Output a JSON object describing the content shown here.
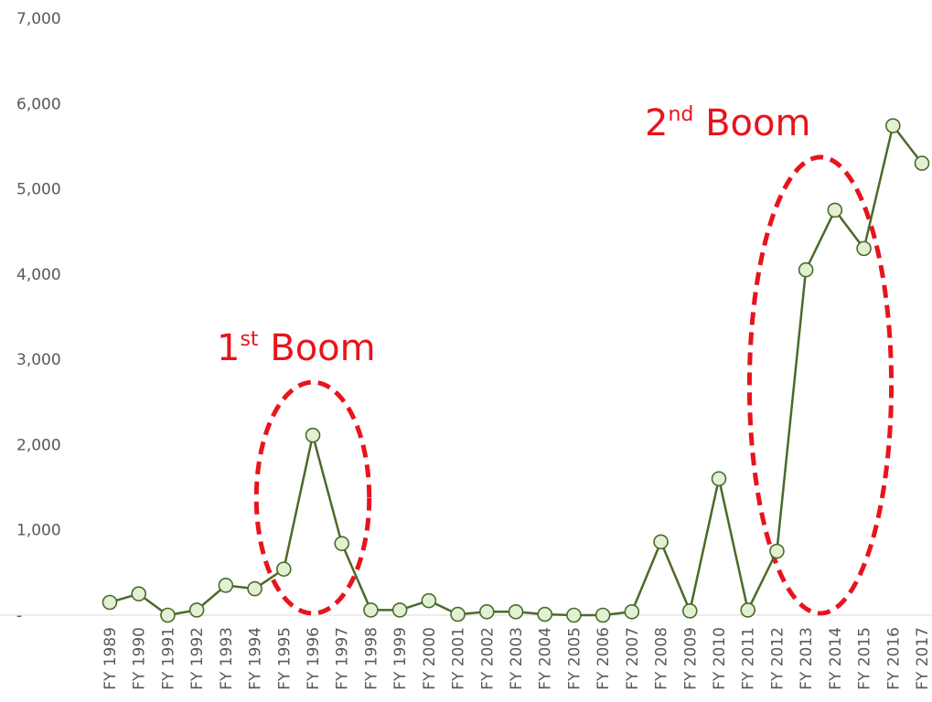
{
  "chart_data": {
    "type": "line",
    "title": "",
    "xlabel": "",
    "ylabel": "",
    "ylim": [
      0,
      7000
    ],
    "yticks": [
      {
        "value": 0,
        "label": "-"
      },
      {
        "value": 1000,
        "label": "1,000"
      },
      {
        "value": 2000,
        "label": "2,000"
      },
      {
        "value": 3000,
        "label": "3,000"
      },
      {
        "value": 4000,
        "label": "4,000"
      },
      {
        "value": 5000,
        "label": "5,000"
      },
      {
        "value": 6000,
        "label": "6,000"
      },
      {
        "value": 7000,
        "label": "7,000"
      }
    ],
    "grid": false,
    "legend": "none",
    "categories": [
      "FY 1989",
      "FY 1990",
      "FY 1991",
      "FY 1992",
      "FY 1993",
      "FY 1994",
      "FY 1995",
      "FY 1996",
      "FY 1997",
      "FY 1998",
      "FY 1999",
      "FY 2000",
      "FY 2001",
      "FY 2002",
      "FY 2003",
      "FY 2004",
      "FY 2005",
      "FY 2006",
      "FY 2007",
      "FY 2008",
      "FY 2009",
      "FY 2010",
      "FY 2011",
      "FY 2012",
      "FY 2013",
      "FY 2014",
      "FY 2015",
      "FY 2016",
      "FY 2017"
    ],
    "series": [
      {
        "values": [
          150,
          250,
          0,
          60,
          350,
          310,
          540,
          2110,
          840,
          60,
          60,
          170,
          10,
          40,
          40,
          10,
          0,
          0,
          40,
          860,
          50,
          1600,
          60,
          750,
          4050,
          4750,
          4300,
          5740,
          5300
        ],
        "color": "#4a6a2a",
        "marker_fill": "#e2f0d4"
      }
    ],
    "annotations": [
      {
        "main": "1",
        "sup": "st",
        "rest": " Boom",
        "color": "#e8141b",
        "ellipse_categories": [
          "FY 1995",
          "FY 1997"
        ]
      },
      {
        "main": "2",
        "sup": "nd",
        "rest": " Boom",
        "color": "#e8141b",
        "ellipse_categories": [
          "FY 2012",
          "FY 2015"
        ]
      }
    ]
  }
}
